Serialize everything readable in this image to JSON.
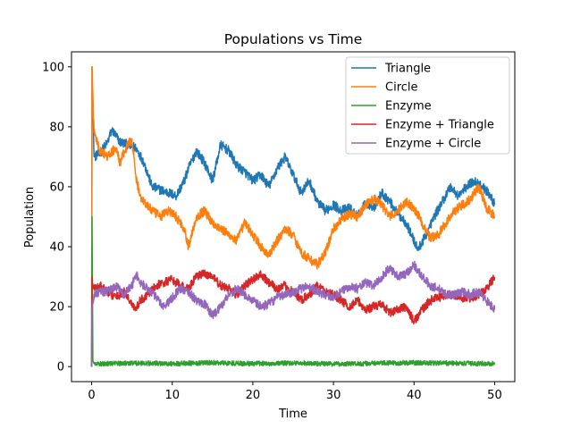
{
  "chart_data": {
    "type": "line",
    "title": "Populations vs Time",
    "xlabel": "Time",
    "ylabel": "Population",
    "xlim": [
      -2.5,
      52.5
    ],
    "ylim": [
      -5,
      105
    ],
    "xticks": [
      0,
      10,
      20,
      30,
      40,
      50
    ],
    "yticks": [
      0,
      20,
      40,
      60,
      80,
      100
    ],
    "legend_position": "top-right",
    "grid": false,
    "series": [
      {
        "name": "Triangle",
        "color": "#1f77b4",
        "noise": 1.6,
        "x": [
          0,
          0.05,
          0.3,
          1,
          2,
          2.5,
          3.5,
          4.5,
          5.5,
          6.5,
          7.5,
          8.5,
          9.5,
          10.5,
          11.5,
          12,
          13,
          14,
          15,
          16,
          17,
          18,
          19,
          20,
          21,
          22,
          23,
          24,
          25,
          26,
          27,
          28,
          29,
          30,
          31,
          32,
          33,
          34,
          35,
          36,
          37,
          38,
          39,
          40,
          40.5,
          41.5,
          42.5,
          43.5,
          44.5,
          45.5,
          46.5,
          47.5,
          48.5,
          49.5,
          50
        ],
        "y": [
          0,
          100,
          70,
          71,
          75,
          79,
          75,
          74,
          73,
          68,
          60,
          59,
          58,
          57,
          62,
          66,
          72,
          68,
          62,
          74,
          72,
          67,
          65,
          62,
          64,
          60,
          66,
          70,
          64,
          58,
          62,
          55,
          52,
          54,
          52,
          53,
          50,
          55,
          53,
          58,
          55,
          51,
          48,
          42,
          39,
          44,
          50,
          55,
          60,
          57,
          60,
          62,
          60,
          57,
          54
        ]
      },
      {
        "name": "Circle",
        "color": "#ff7f0e",
        "noise": 1.6,
        "x": [
          0,
          0.05,
          0.3,
          1,
          2,
          3,
          3.5,
          4.5,
          5,
          5.5,
          6,
          6.5,
          7.5,
          8.5,
          9.5,
          10.5,
          11.5,
          12,
          13,
          14,
          15,
          16,
          17,
          18,
          19,
          20,
          21,
          22,
          23,
          24,
          25,
          26,
          27,
          28,
          29,
          30,
          31,
          32,
          33,
          34,
          35,
          36,
          37,
          38,
          39,
          40,
          41,
          42,
          43,
          44,
          45,
          46,
          47,
          48,
          49,
          50
        ],
        "y": [
          0,
          100,
          78,
          72,
          70,
          73,
          68,
          74,
          76,
          63,
          57,
          55,
          52,
          50,
          52,
          50,
          46,
          40,
          50,
          52,
          48,
          46,
          44,
          42,
          48,
          44,
          40,
          37,
          42,
          46,
          44,
          38,
          36,
          34,
          38,
          46,
          49,
          51,
          50,
          54,
          56,
          54,
          50,
          52,
          55,
          53,
          48,
          43,
          44,
          48,
          52,
          54,
          56,
          60,
          53,
          50
        ]
      },
      {
        "name": "Enzyme",
        "color": "#2ca02c",
        "noise": 0.8,
        "x": [
          0,
          0.05,
          0.15,
          0.3,
          1,
          5,
          10,
          15,
          20,
          25,
          30,
          35,
          40,
          45,
          50
        ],
        "y": [
          0,
          50,
          2,
          1,
          1,
          1.2,
          1,
          1.3,
          1,
          1.2,
          0.9,
          1.1,
          1.3,
          1.1,
          1
        ],
        "min": 0
      },
      {
        "name": "Enzyme + Triangle",
        "color": "#d62728",
        "noise": 1.5,
        "x": [
          0,
          0.05,
          0.3,
          1,
          2,
          3,
          4,
          5,
          5.5,
          6,
          7,
          8,
          9,
          10,
          11,
          12,
          13,
          14,
          15,
          16,
          17,
          18,
          19,
          20,
          21,
          22,
          23,
          24,
          25,
          26,
          27,
          28,
          29,
          30,
          31,
          32,
          33,
          34,
          35,
          36,
          37,
          38,
          39,
          40,
          41,
          42,
          43,
          44,
          45,
          46,
          47,
          48,
          49,
          50
        ],
        "y": [
          0,
          30,
          26,
          27,
          25,
          23,
          25,
          21,
          19,
          22,
          24,
          27,
          28,
          29,
          27,
          26,
          30,
          31,
          30,
          27,
          26,
          24,
          27,
          29,
          31,
          28,
          26,
          27,
          25,
          22,
          24,
          27,
          25,
          24,
          22,
          20,
          22,
          19,
          20,
          21,
          18,
          19,
          20,
          15,
          19,
          22,
          23,
          24,
          24,
          23,
          23,
          24,
          26,
          30
        ]
      },
      {
        "name": "Enzyme + Circle",
        "color": "#9467bd",
        "noise": 1.5,
        "x": [
          0,
          0.05,
          0.3,
          1,
          2,
          3,
          4,
          5,
          5.5,
          6,
          7,
          8,
          9,
          10,
          11,
          12,
          13,
          14,
          15,
          16,
          17,
          18,
          19,
          20,
          21,
          22,
          23,
          24,
          25,
          26,
          27,
          28,
          29,
          30,
          31,
          32,
          33,
          34,
          35,
          36,
          37,
          38,
          39,
          40,
          41,
          42,
          43,
          44,
          45,
          46,
          47,
          48,
          49,
          50
        ],
        "y": [
          0,
          20,
          24,
          25,
          25,
          27,
          24,
          27,
          31,
          28,
          26,
          23,
          20,
          23,
          26,
          25,
          22,
          21,
          17,
          20,
          24,
          26,
          24,
          22,
          20,
          21,
          23,
          24,
          25,
          26,
          27,
          25,
          24,
          23,
          25,
          27,
          26,
          28,
          27,
          30,
          33,
          30,
          31,
          34,
          30,
          27,
          26,
          24,
          24,
          25,
          24,
          25,
          22,
          19
        ]
      }
    ]
  }
}
